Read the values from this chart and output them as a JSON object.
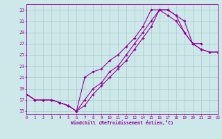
{
  "bg_color": "#cce8e8",
  "grid_color": "#aacccc",
  "line_color": "#990099",
  "xlabel": "Windchill (Refroidissement éolien,°C)",
  "xlim": [
    0,
    23
  ],
  "ylim": [
    14.5,
    34.0
  ],
  "xticks": [
    0,
    1,
    2,
    3,
    4,
    5,
    6,
    7,
    8,
    9,
    10,
    11,
    12,
    13,
    14,
    15,
    16,
    17,
    18,
    19,
    20,
    21,
    22,
    23
  ],
  "yticks": [
    15,
    17,
    19,
    21,
    23,
    25,
    27,
    29,
    31,
    33
  ],
  "line1_x": [
    0,
    1,
    2,
    3,
    4,
    5,
    6,
    7,
    8,
    9,
    10,
    11,
    12,
    13,
    14,
    15,
    16,
    17,
    18,
    19,
    20,
    21,
    22,
    23
  ],
  "line1_y": [
    18,
    17,
    17,
    17,
    16.5,
    16,
    15,
    16,
    18,
    19.5,
    21,
    22.5,
    24,
    26,
    28,
    30,
    33,
    33,
    32,
    29,
    27,
    26,
    25.5,
    25.5
  ],
  "line2_x": [
    0,
    1,
    2,
    3,
    4,
    5,
    6,
    7,
    8,
    9,
    10,
    11,
    12,
    13,
    14,
    15,
    16,
    17,
    18,
    19,
    20,
    21
  ],
  "line2_y": [
    18,
    17,
    17,
    17,
    16.5,
    16,
    15,
    17,
    19,
    20,
    22,
    23,
    25,
    27,
    29,
    31,
    33,
    33,
    32,
    31,
    27,
    27
  ],
  "line3_x": [
    0,
    1,
    2,
    3,
    4,
    5,
    6,
    7,
    8,
    9,
    10,
    11,
    12,
    13,
    14,
    15,
    16,
    17,
    18,
    19,
    20,
    21,
    22,
    23
  ],
  "line3_y": [
    18,
    17,
    17,
    17,
    16.5,
    16,
    15,
    21,
    22,
    22.5,
    24,
    25,
    26.5,
    28,
    30,
    33,
    33,
    32,
    31,
    29,
    27,
    26,
    25.5,
    25.5
  ]
}
